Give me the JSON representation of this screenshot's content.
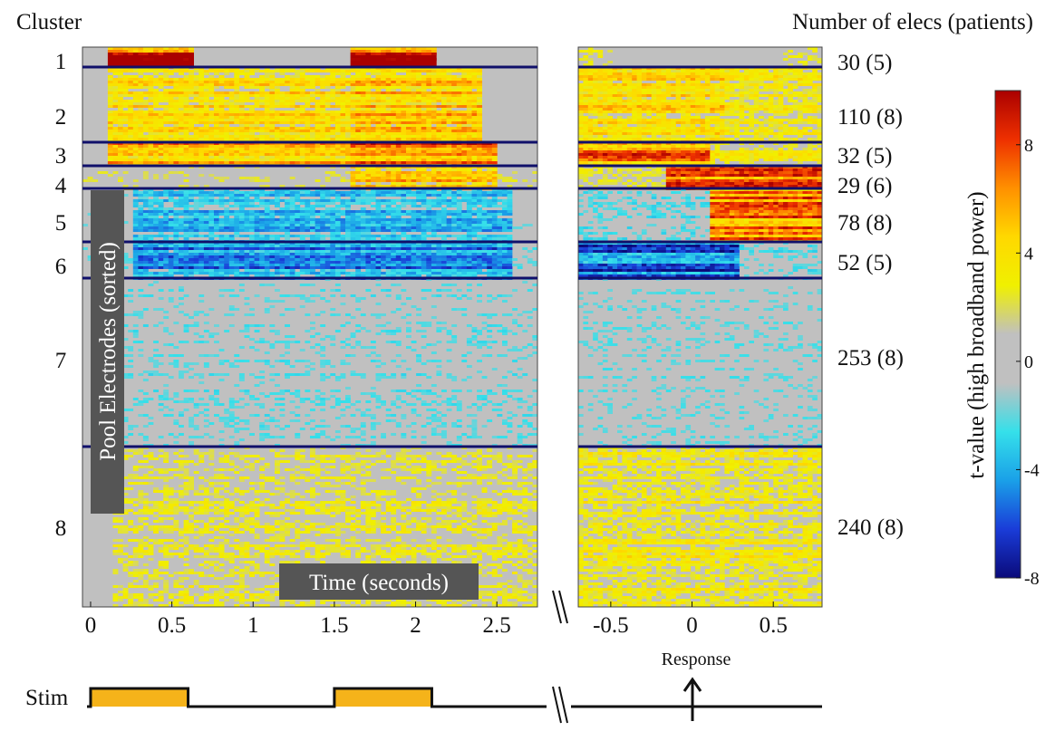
{
  "header": {
    "left": "Cluster",
    "right": "Number of elecs (patients)"
  },
  "chart_data": {
    "type": "heatmap",
    "ylabel": "Pool Electrodes (sorted)",
    "xlabel": "Time (seconds)",
    "colorbar": {
      "label": "t-value (high broadband power)",
      "range": [
        -8,
        10
      ],
      "ticks": [
        "8",
        "4",
        "0",
        "-4",
        "-8"
      ],
      "colors": [
        "#0a0a7a",
        "#1a3cd8",
        "#1aa0e8",
        "#35e0ea",
        "#c0c0c0",
        "#c0c0c0",
        "#f0f000",
        "#ffd800",
        "#ff9000",
        "#ee3000",
        "#aa0000"
      ]
    },
    "left_panel": {
      "x_ticks": [
        "0",
        "0.5",
        "1",
        "1.5",
        "2",
        "2.5"
      ],
      "x_range": [
        -0.05,
        2.75
      ]
    },
    "right_panel": {
      "x_ticks": [
        "-0.5",
        "0",
        "0.5"
      ],
      "x_range": [
        -0.7,
        0.8
      ]
    },
    "clusters": [
      {
        "id": "1",
        "count": "30",
        "patients": "(5)",
        "color": "#cc1a00"
      },
      {
        "id": "2",
        "count": "110",
        "patients": "(8)",
        "color": "#f0d000"
      },
      {
        "id": "3",
        "count": "32",
        "patients": "(5)",
        "color": "#f08000"
      },
      {
        "id": "4",
        "count": "29",
        "patients": "(6)",
        "color": "#e85000"
      },
      {
        "id": "5",
        "count": "78",
        "patients": "(8)",
        "color": "#40c8ee"
      },
      {
        "id": "6",
        "count": "52",
        "patients": "(5)",
        "color": "#2090e0"
      },
      {
        "id": "7",
        "count": "253",
        "patients": "(8)",
        "color": "#c0c0c0"
      },
      {
        "id": "8",
        "count": "240",
        "patients": "(8)",
        "color": "#e8e040"
      }
    ],
    "stimulus": {
      "label": "Stim",
      "on_intervals_seconds": [
        [
          0,
          0.6
        ],
        [
          1.5,
          2.1
        ]
      ],
      "color": "#f5b31a"
    },
    "response_label": "Response",
    "response_time_seconds": 0
  }
}
